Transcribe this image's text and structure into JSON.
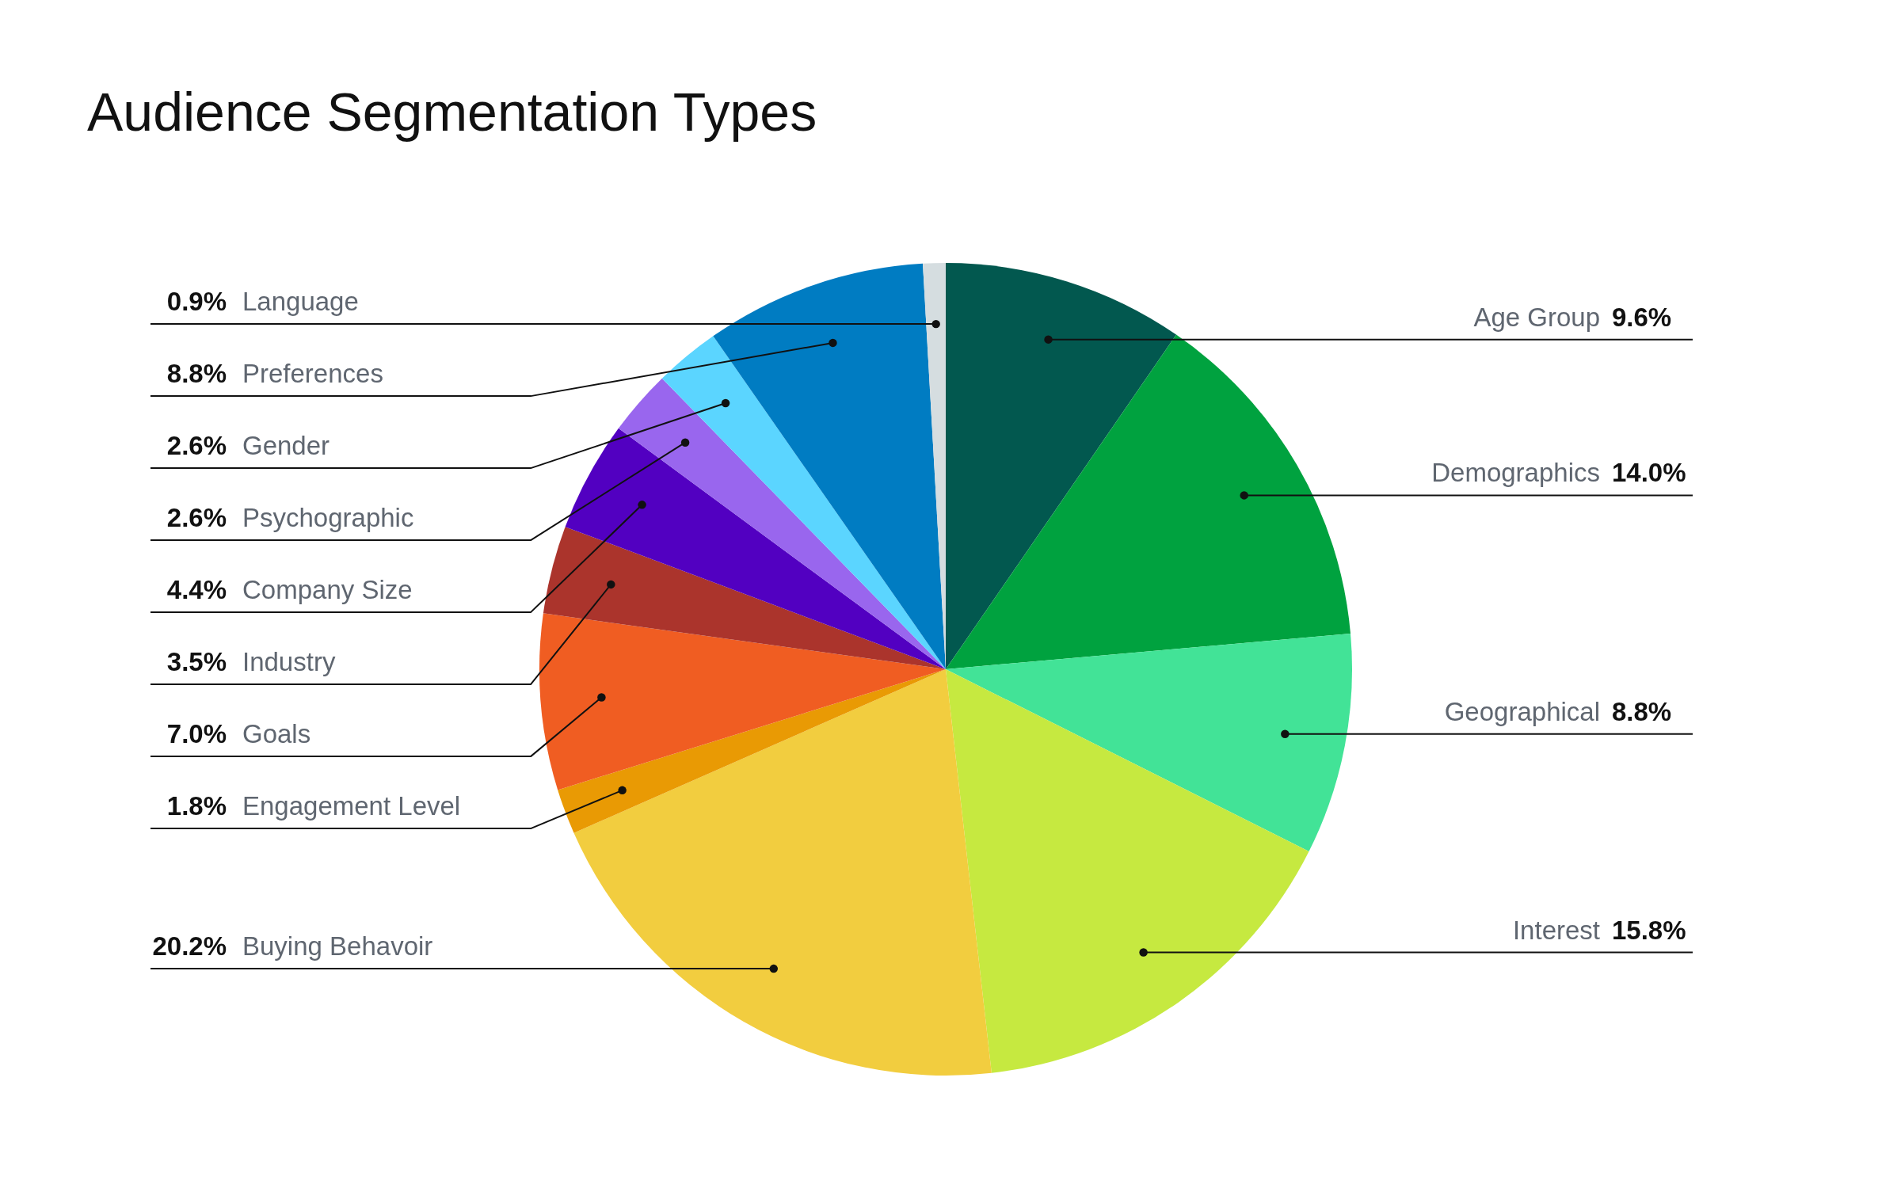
{
  "chart_data": {
    "type": "pie",
    "title": "Audience Segmentation Types",
    "categories": [
      "Age Group",
      "Demographics",
      "Geographical",
      "Interest",
      "Buying Behavoir",
      "Engagement Level",
      "Goals",
      "Industry",
      "Company Size",
      "Psychographic",
      "Gender",
      "Preferences",
      "Language"
    ],
    "values": [
      9.6,
      14.0,
      8.8,
      15.8,
      20.2,
      1.8,
      7.0,
      3.5,
      4.4,
      2.6,
      2.6,
      8.8,
      0.9
    ],
    "value_labels": [
      "9.6%",
      "14.0%",
      "8.8%",
      "15.8%",
      "20.2%",
      "1.8%",
      "7.0%",
      "3.5%",
      "4.4%",
      "2.6%",
      "2.6%",
      "8.8%",
      "0.9%"
    ],
    "colors": [
      "#02584f",
      "#00a23f",
      "#42e397",
      "#c6e940",
      "#f2cd3f",
      "#e99a04",
      "#f05d22",
      "#ab342c",
      "#5200c1",
      "#9966ee",
      "#5bd5ff",
      "#007cc2",
      "#d5dde0"
    ]
  }
}
